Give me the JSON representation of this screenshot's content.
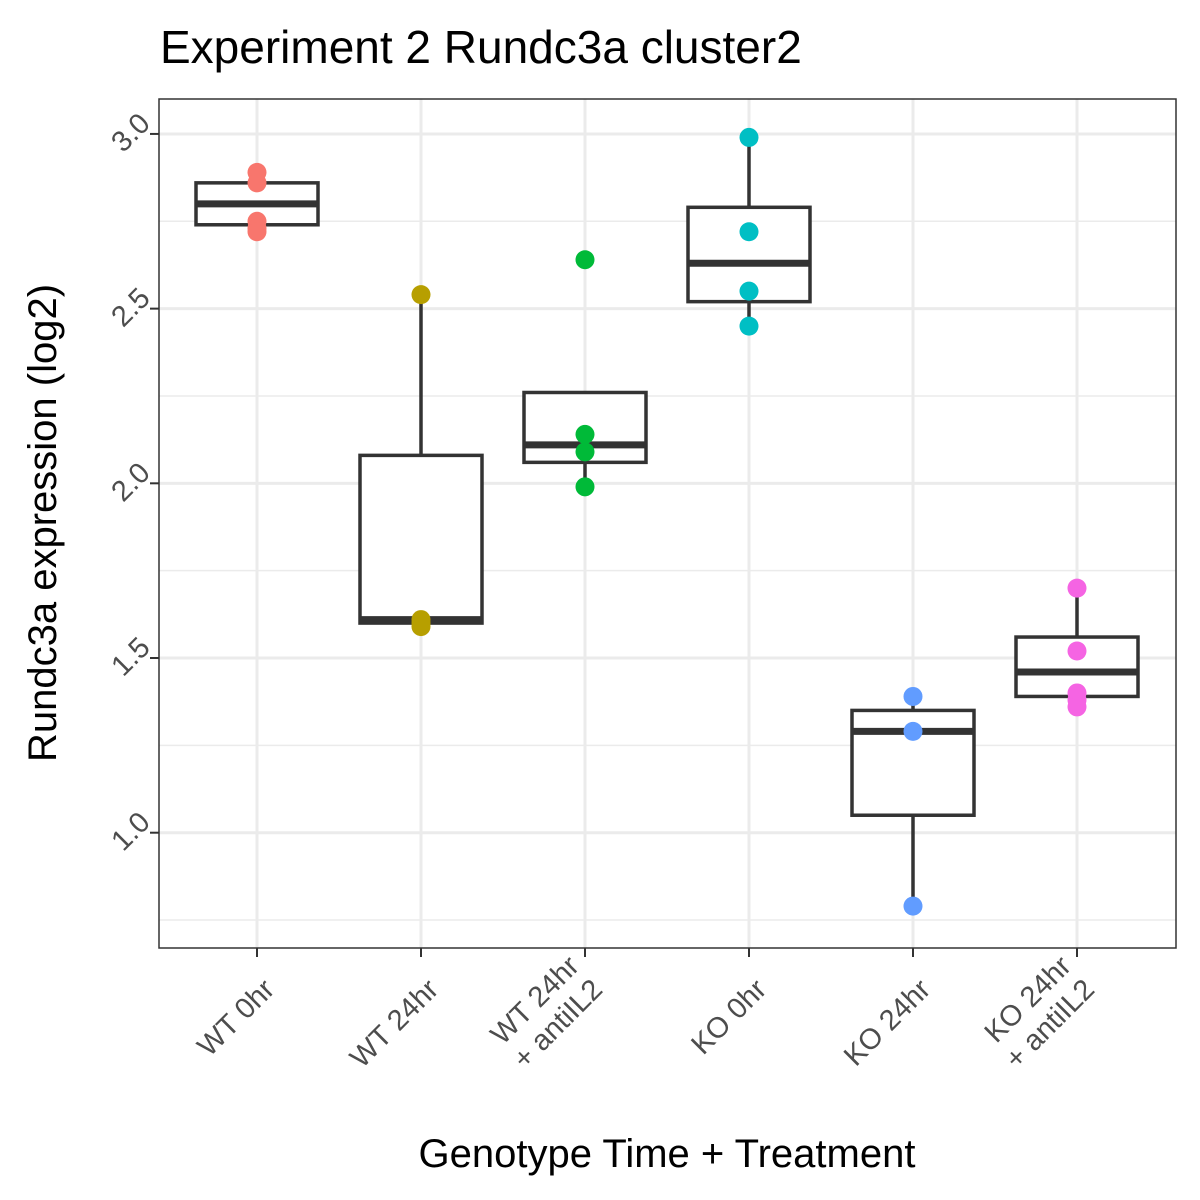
{
  "chart_data": {
    "type": "boxplot",
    "title": "Experiment 2 Rundc3a cluster2",
    "xlabel": "Genotype Time + Treatment",
    "ylabel": "Rundc3a expression (log2)",
    "ylim": [
      0.67,
      3.1
    ],
    "yticks": [
      "1.0",
      "1.5",
      "2.0",
      "2.5",
      "3.0"
    ],
    "ytick_values": [
      1.0,
      1.5,
      2.0,
      2.5,
      3.0
    ],
    "legend": "none",
    "grid": true,
    "categories": [
      {
        "label_lines": [
          "WT 0hr"
        ],
        "color": "#F8766D",
        "box": {
          "lower_whisker": 2.72,
          "q1": 2.74,
          "median": 2.8,
          "q3": 2.86,
          "upper_whisker": 2.89
        },
        "points": [
          2.89,
          2.86,
          2.75,
          2.73,
          2.72
        ]
      },
      {
        "label_lines": [
          "WT 24hr"
        ],
        "color": "#B79F00",
        "box": {
          "lower_whisker": 1.59,
          "q1": 1.6,
          "median": 1.61,
          "q3": 2.08,
          "upper_whisker": 2.54
        },
        "points": [
          2.54,
          1.61,
          1.6,
          1.59
        ]
      },
      {
        "label_lines": [
          "WT 24hr",
          "+ antiIL2"
        ],
        "color": "#00BA38",
        "box": {
          "lower_whisker": 1.98,
          "q1": 2.06,
          "median": 2.11,
          "q3": 2.26,
          "upper_whisker": 2.26
        },
        "points": [
          2.64,
          2.14,
          2.09,
          1.99
        ]
      },
      {
        "label_lines": [
          "KO 0hr"
        ],
        "color": "#00BFC4",
        "box": {
          "lower_whisker": 2.45,
          "q1": 2.52,
          "median": 2.63,
          "q3": 2.79,
          "upper_whisker": 2.99
        },
        "points": [
          2.99,
          2.72,
          2.55,
          2.45
        ]
      },
      {
        "label_lines": [
          "KO 24hr"
        ],
        "color": "#619CFF",
        "box": {
          "lower_whisker": 0.79,
          "q1": 1.05,
          "median": 1.29,
          "q3": 1.35,
          "upper_whisker": 1.39
        },
        "points": [
          1.39,
          1.29,
          0.79
        ]
      },
      {
        "label_lines": [
          "KO 24hr",
          "+ antiIL2"
        ],
        "color": "#F564E3",
        "box": {
          "lower_whisker": 1.36,
          "q1": 1.39,
          "median": 1.46,
          "q3": 1.56,
          "upper_whisker": 1.7
        },
        "points": [
          1.7,
          1.52,
          1.4,
          1.38,
          1.36
        ]
      }
    ]
  }
}
